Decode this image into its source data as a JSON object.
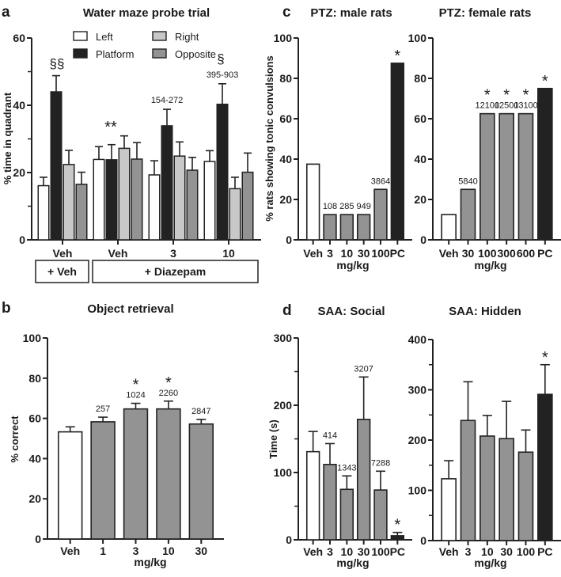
{
  "colors": {
    "white_fill": "#ffffff",
    "black_fill": "#222222",
    "light_gray_fill": "#c8c8c8",
    "mid_gray_fill": "#939393",
    "stroke": "#222222"
  },
  "chart_data": [
    {
      "id": "a",
      "panel_letter": "a",
      "type": "bar",
      "title": "Water maze probe trial",
      "ylabel": "% time in quadrant",
      "xlabel": "",
      "ylim": [
        0,
        60
      ],
      "yticks": [
        0,
        20,
        40,
        60
      ],
      "ytick_labels": [
        "0",
        "20",
        "40",
        "60"
      ],
      "minor_yticks": [
        10,
        30,
        50
      ],
      "grid": false,
      "legend_position": "top-center",
      "categories": [
        "Veh",
        "Veh",
        "3",
        "10"
      ],
      "group_boxes": [
        {
          "label": "+ Veh",
          "span": [
            0,
            0
          ]
        },
        {
          "label": "+ Diazepam",
          "span": [
            1,
            3
          ]
        }
      ],
      "series": [
        {
          "name": "Left",
          "color_key": "white_fill",
          "values": [
            16.1,
            23.9,
            19.3,
            23.3
          ],
          "errors": [
            2.5,
            3.8,
            4.2,
            3.2
          ]
        },
        {
          "name": "Platform",
          "color_key": "black_fill",
          "values": [
            44.0,
            23.8,
            33.9,
            40.3
          ],
          "errors": [
            4.8,
            4.5,
            4.9,
            6.1
          ]
        },
        {
          "name": "Right",
          "color_key": "light_gray_fill",
          "values": [
            22.4,
            27.2,
            24.9,
            15.2
          ],
          "errors": [
            4.2,
            3.7,
            4.2,
            3.4
          ]
        },
        {
          "name": "Opposite",
          "color_key": "mid_gray_fill",
          "values": [
            16.5,
            24.0,
            20.7,
            20.1
          ],
          "errors": [
            3.6,
            4.9,
            3.8,
            5.7
          ]
        }
      ],
      "legend_order": [
        "Left",
        "Right",
        "Platform",
        "Opposite"
      ],
      "annotations": [
        {
          "group": 0,
          "series": "Platform",
          "text": "§§"
        },
        {
          "group": 1,
          "series": "center",
          "text": "**"
        },
        {
          "group": 2,
          "series": "Platform",
          "text": "154-272"
        },
        {
          "group": 3,
          "series": "Platform",
          "text": "395-903"
        },
        {
          "group": 3,
          "series": "Platform",
          "text": "§"
        }
      ]
    },
    {
      "id": "b",
      "panel_letter": "b",
      "type": "bar",
      "title": "Object retrieval",
      "ylabel": "% correct",
      "xlabel": "mg/kg",
      "ylim": [
        0,
        100
      ],
      "yticks": [
        0,
        20,
        40,
        60,
        80,
        100
      ],
      "ytick_labels": [
        "0",
        "20",
        "40",
        "60",
        "80",
        "100"
      ],
      "grid": false,
      "categories": [
        "Veh",
        "1",
        "3",
        "10",
        "30"
      ],
      "values": [
        53.3,
        58.3,
        64.7,
        64.7,
        57.2
      ],
      "errors": [
        2.5,
        2.3,
        2.8,
        3.9,
        2.3
      ],
      "color_keys": [
        "white_fill",
        "mid_gray_fill",
        "mid_gray_fill",
        "mid_gray_fill",
        "mid_gray_fill"
      ],
      "value_labels": [
        "",
        "257",
        "1024",
        "2260",
        "2847"
      ],
      "significance": [
        "",
        "",
        "*",
        "*",
        ""
      ]
    },
    {
      "id": "c1",
      "panel_letter": "c",
      "type": "bar",
      "title": "PTZ: male rats",
      "ylabel": "% rats showing tonic convulsions",
      "xlabel": "mg/kg",
      "ylim": [
        0,
        100
      ],
      "yticks": [
        0,
        20,
        40,
        60,
        80,
        100
      ],
      "ytick_labels": [
        "0",
        "20",
        "40",
        "60",
        "80",
        "100"
      ],
      "grid": false,
      "categories": [
        "Veh",
        "3",
        "10",
        "30",
        "100",
        "PC"
      ],
      "values": [
        37.5,
        12.5,
        12.5,
        12.5,
        25.0,
        87.5
      ],
      "errors": [
        0,
        0,
        0,
        0,
        0,
        0
      ],
      "color_keys": [
        "white_fill",
        "mid_gray_fill",
        "mid_gray_fill",
        "mid_gray_fill",
        "mid_gray_fill",
        "black_fill"
      ],
      "value_labels": [
        "",
        "108",
        "285",
        "949",
        "3864",
        ""
      ],
      "significance": [
        "",
        "",
        "",
        "",
        "",
        "*"
      ]
    },
    {
      "id": "c2",
      "panel_letter": "",
      "type": "bar",
      "title": "PTZ: female rats",
      "ylabel": "",
      "xlabel": "mg/kg",
      "ylim": [
        0,
        100
      ],
      "yticks": [
        0,
        20,
        40,
        60,
        80,
        100
      ],
      "ytick_labels": [
        "0",
        "20",
        "40",
        "60",
        "80",
        "100"
      ],
      "grid": false,
      "categories": [
        "Veh",
        "30",
        "100",
        "300",
        "600",
        "PC"
      ],
      "values": [
        12.5,
        25.0,
        62.5,
        62.5,
        62.5,
        75.0
      ],
      "errors": [
        0,
        0,
        0,
        0,
        0,
        0
      ],
      "color_keys": [
        "white_fill",
        "mid_gray_fill",
        "mid_gray_fill",
        "mid_gray_fill",
        "mid_gray_fill",
        "black_fill"
      ],
      "value_labels": [
        "",
        "5840",
        "12100",
        "12500",
        "13100",
        ""
      ],
      "significance": [
        "",
        "",
        "*",
        "*",
        "*",
        "*"
      ]
    },
    {
      "id": "d1",
      "panel_letter": "d",
      "type": "bar",
      "title": "SAA: Social",
      "ylabel": "Time (s)",
      "xlabel": "mg/kg",
      "ylim": [
        0,
        300
      ],
      "yticks": [
        0,
        100,
        200,
        300
      ],
      "ytick_labels": [
        "0",
        "100",
        "200",
        "300"
      ],
      "minor_yticks": [
        50,
        150,
        250
      ],
      "grid": false,
      "categories": [
        "Veh",
        "3",
        "10",
        "30",
        "100",
        "PC"
      ],
      "values": [
        131,
        112,
        75,
        179,
        74,
        6
      ],
      "errors": [
        30,
        31,
        20,
        63,
        28,
        5
      ],
      "color_keys": [
        "white_fill",
        "mid_gray_fill",
        "mid_gray_fill",
        "mid_gray_fill",
        "mid_gray_fill",
        "black_fill"
      ],
      "value_labels": [
        "",
        "414",
        "1343",
        "3207",
        "7288",
        ""
      ],
      "significance": [
        "",
        "",
        "",
        "",
        "",
        "*"
      ]
    },
    {
      "id": "d2",
      "panel_letter": "",
      "type": "bar",
      "title": "SAA: Hidden",
      "ylabel": "",
      "xlabel": "mg/kg",
      "ylim": [
        0,
        400
      ],
      "yticks": [
        0,
        100,
        200,
        300,
        400
      ],
      "ytick_labels": [
        "0",
        "100",
        "200",
        "300",
        "400"
      ],
      "minor_yticks": [
        50,
        150,
        250,
        350
      ],
      "grid": false,
      "categories": [
        "Veh",
        "3",
        "10",
        "30",
        "100",
        "PC"
      ],
      "values": [
        123,
        239,
        208,
        203,
        176,
        291
      ],
      "errors": [
        36,
        77,
        41,
        74,
        44,
        59
      ],
      "color_keys": [
        "white_fill",
        "mid_gray_fill",
        "mid_gray_fill",
        "mid_gray_fill",
        "mid_gray_fill",
        "black_fill"
      ],
      "value_labels": [
        "",
        "",
        "",
        "",
        "",
        ""
      ],
      "significance": [
        "",
        "",
        "",
        "",
        "",
        "*"
      ]
    }
  ]
}
